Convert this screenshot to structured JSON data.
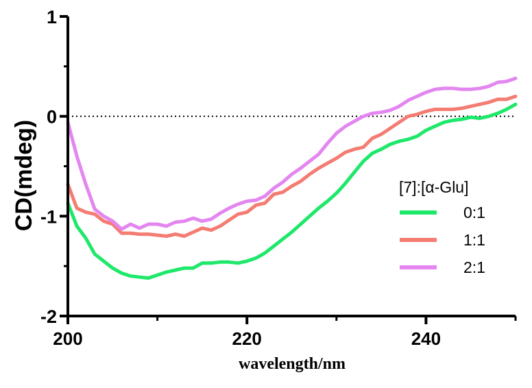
{
  "chart_data": {
    "type": "line",
    "title": "",
    "xlabel": "wavelength/nm",
    "ylabel": "CD(mdeg)",
    "xlim": [
      200,
      250
    ],
    "ylim": [
      -2,
      1
    ],
    "x_ticks": [
      "200",
      "220",
      "240"
    ],
    "y_ticks": [
      "1",
      "0",
      "-1",
      "-2"
    ],
    "grid": false,
    "zero_line": "dotted",
    "legend": {
      "title": "[7]:[α-Glu]",
      "placement": "right"
    },
    "series": [
      {
        "name": "0:1",
        "color": "#1ee86a",
        "x": [
          200,
          201,
          202,
          203,
          204,
          205,
          206,
          207,
          208,
          209,
          210,
          211,
          212,
          213,
          214,
          215,
          216,
          217,
          218,
          219,
          220,
          221,
          222,
          223,
          224,
          225,
          226,
          227,
          228,
          229,
          230,
          231,
          232,
          233,
          234,
          235,
          236,
          237,
          238,
          239,
          240,
          241,
          242,
          243,
          244,
          245,
          246,
          247,
          248,
          249,
          250
        ],
        "y": [
          -0.87,
          -1.1,
          -1.22,
          -1.38,
          -1.45,
          -1.52,
          -1.57,
          -1.6,
          -1.61,
          -1.62,
          -1.59,
          -1.56,
          -1.54,
          -1.52,
          -1.52,
          -1.47,
          -1.47,
          -1.46,
          -1.46,
          -1.47,
          -1.45,
          -1.42,
          -1.37,
          -1.3,
          -1.23,
          -1.16,
          -1.08,
          -1.0,
          -0.92,
          -0.85,
          -0.77,
          -0.67,
          -0.56,
          -0.45,
          -0.37,
          -0.33,
          -0.28,
          -0.25,
          -0.23,
          -0.2,
          -0.14,
          -0.1,
          -0.06,
          -0.04,
          -0.03,
          -0.01,
          -0.02,
          0.0,
          0.03,
          0.07,
          0.12
        ]
      },
      {
        "name": "1:1",
        "color": "#f47c72",
        "x": [
          200,
          201,
          202,
          203,
          204,
          205,
          206,
          207,
          208,
          209,
          210,
          211,
          212,
          213,
          214,
          215,
          216,
          217,
          218,
          219,
          220,
          221,
          222,
          223,
          224,
          225,
          226,
          227,
          228,
          229,
          230,
          231,
          232,
          233,
          234,
          235,
          236,
          237,
          238,
          239,
          240,
          241,
          242,
          243,
          244,
          245,
          246,
          247,
          248,
          249,
          250
        ],
        "y": [
          -0.68,
          -0.92,
          -0.96,
          -0.98,
          -1.05,
          -1.08,
          -1.17,
          -1.17,
          -1.18,
          -1.18,
          -1.19,
          -1.2,
          -1.18,
          -1.2,
          -1.16,
          -1.12,
          -1.14,
          -1.1,
          -1.04,
          -0.98,
          -0.96,
          -0.89,
          -0.87,
          -0.78,
          -0.76,
          -0.7,
          -0.65,
          -0.58,
          -0.52,
          -0.47,
          -0.42,
          -0.36,
          -0.33,
          -0.31,
          -0.22,
          -0.18,
          -0.12,
          -0.06,
          0.0,
          0.02,
          0.05,
          0.07,
          0.07,
          0.07,
          0.08,
          0.1,
          0.12,
          0.14,
          0.17,
          0.17,
          0.2
        ]
      },
      {
        "name": "2:1",
        "color": "#e386f0",
        "x": [
          200,
          201,
          202,
          203,
          204,
          205,
          206,
          207,
          208,
          209,
          210,
          211,
          212,
          213,
          214,
          215,
          216,
          217,
          218,
          219,
          220,
          221,
          222,
          223,
          224,
          225,
          226,
          227,
          228,
          229,
          230,
          231,
          232,
          233,
          234,
          235,
          236,
          237,
          238,
          239,
          240,
          241,
          242,
          243,
          244,
          245,
          246,
          247,
          248,
          249,
          250
        ],
        "y": [
          -0.06,
          -0.4,
          -0.68,
          -0.93,
          -1.0,
          -1.05,
          -1.13,
          -1.08,
          -1.12,
          -1.08,
          -1.08,
          -1.1,
          -1.06,
          -1.05,
          -1.02,
          -1.05,
          -1.03,
          -0.97,
          -0.92,
          -0.88,
          -0.85,
          -0.84,
          -0.8,
          -0.72,
          -0.66,
          -0.58,
          -0.52,
          -0.45,
          -0.38,
          -0.27,
          -0.17,
          -0.1,
          -0.05,
          0.0,
          0.03,
          0.04,
          0.06,
          0.1,
          0.16,
          0.2,
          0.24,
          0.27,
          0.28,
          0.28,
          0.27,
          0.27,
          0.28,
          0.3,
          0.34,
          0.35,
          0.38
        ]
      }
    ]
  }
}
